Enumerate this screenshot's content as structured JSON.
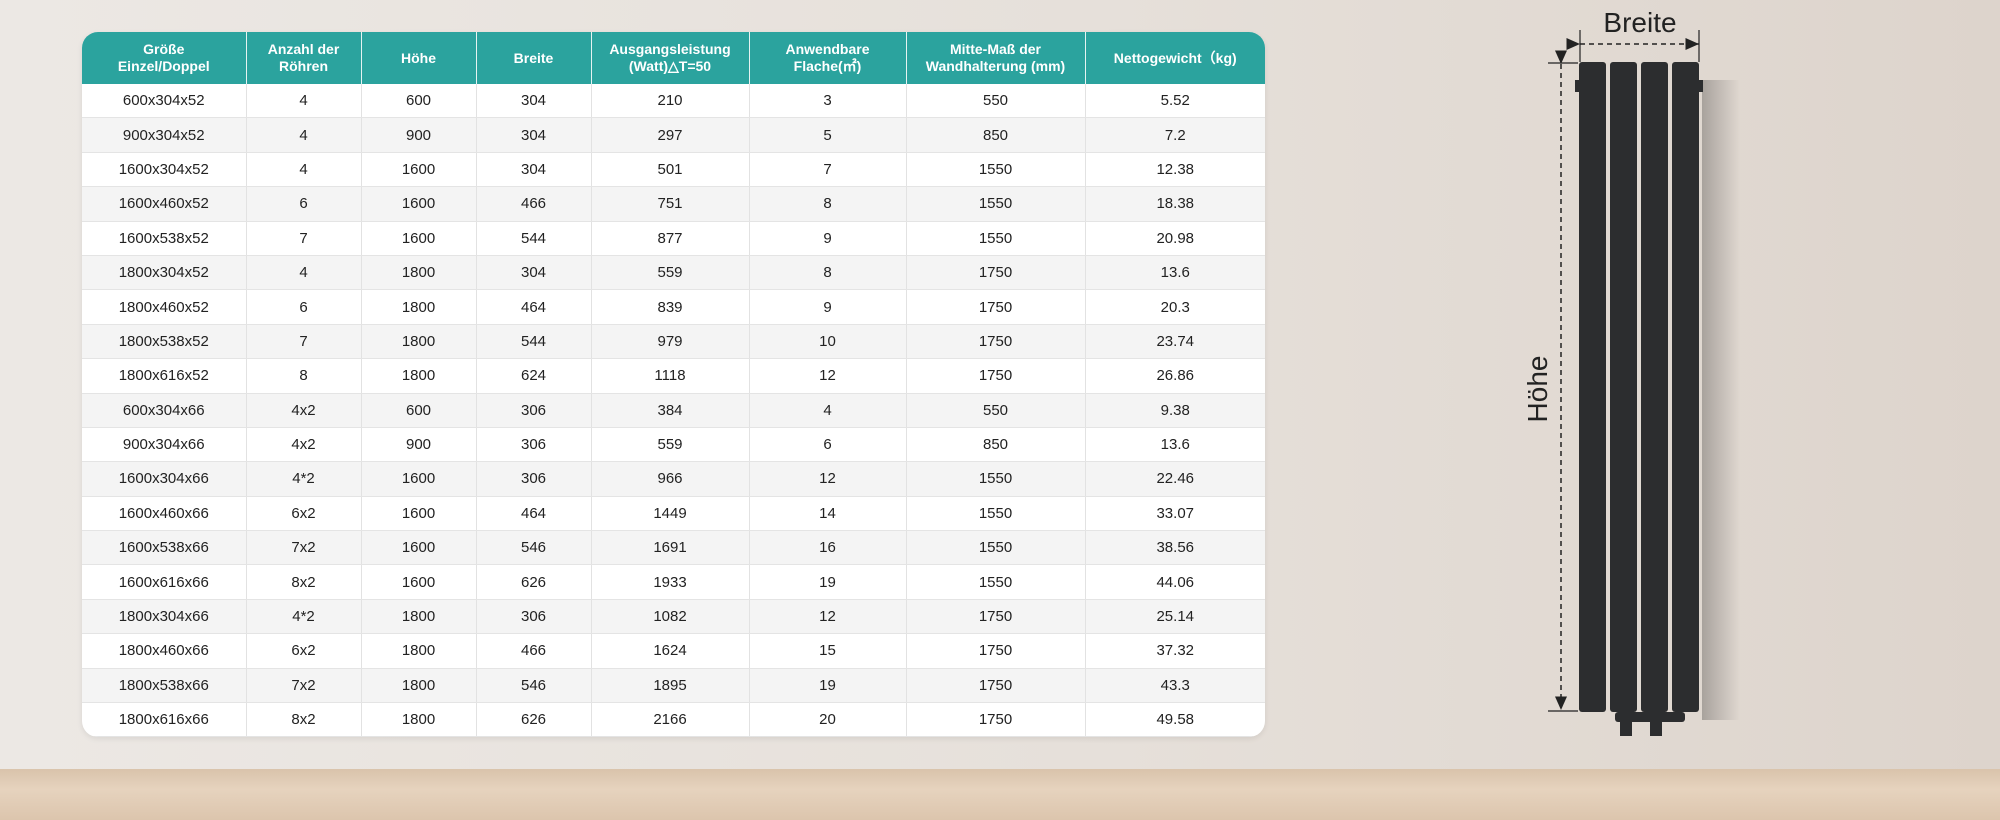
{
  "table": {
    "header": [
      "Größe\nEinzel/Doppel",
      "Anzahl der\nRöhren",
      "Höhe",
      "Breite",
      "Ausgangsleistung\n(Watt)△T=50",
      "Anwendbare\nFlache(㎡)",
      "Mitte-Maß der\nWandhalterung (mm)",
      "Nettogewicht（kg)"
    ],
    "rows": [
      [
        "600x304x52",
        "4",
        "600",
        "304",
        "210",
        "3",
        "550",
        "5.52"
      ],
      [
        "900x304x52",
        "4",
        "900",
        "304",
        "297",
        "5",
        "850",
        "7.2"
      ],
      [
        "1600x304x52",
        "4",
        "1600",
        "304",
        "501",
        "7",
        "1550",
        "12.38"
      ],
      [
        "1600x460x52",
        "6",
        "1600",
        "466",
        "751",
        "8",
        "1550",
        "18.38"
      ],
      [
        "1600x538x52",
        "7",
        "1600",
        "544",
        "877",
        "9",
        "1550",
        "20.98"
      ],
      [
        "1800x304x52",
        "4",
        "1800",
        "304",
        "559",
        "8",
        "1750",
        "13.6"
      ],
      [
        "1800x460x52",
        "6",
        "1800",
        "464",
        "839",
        "9",
        "1750",
        "20.3"
      ],
      [
        "1800x538x52",
        "7",
        "1800",
        "544",
        "979",
        "10",
        "1750",
        "23.74"
      ],
      [
        "1800x616x52",
        "8",
        "1800",
        "624",
        "1118",
        "12",
        "1750",
        "26.86"
      ],
      [
        "600x304x66",
        "4x2",
        "600",
        "306",
        "384",
        "4",
        "550",
        "9.38"
      ],
      [
        "900x304x66",
        "4x2",
        "900",
        "306",
        "559",
        "6",
        "850",
        "13.6"
      ],
      [
        "1600x304x66",
        "4*2",
        "1600",
        "306",
        "966",
        "12",
        "1550",
        "22.46"
      ],
      [
        "1600x460x66",
        "6x2",
        "1600",
        "464",
        "1449",
        "14",
        "1550",
        "33.07"
      ],
      [
        "1600x538x66",
        "7x2",
        "1600",
        "546",
        "1691",
        "16",
        "1550",
        "38.56"
      ],
      [
        "1600x616x66",
        "8x2",
        "1600",
        "626",
        "1933",
        "19",
        "1550",
        "44.06"
      ],
      [
        "1800x304x66",
        "4*2",
        "1800",
        "306",
        "1082",
        "12",
        "1750",
        "25.14"
      ],
      [
        "1800x460x66",
        "6x2",
        "1800",
        "466",
        "1624",
        "15",
        "1750",
        "37.32"
      ],
      [
        "1800x538x66",
        "7x2",
        "1800",
        "546",
        "1895",
        "19",
        "1750",
        "43.3"
      ],
      [
        "1800x616x66",
        "8x2",
        "1800",
        "626",
        "2166",
        "20",
        "1750",
        "49.58"
      ]
    ]
  },
  "diagram": {
    "width_label": "Breite",
    "height_label": "Höhe"
  }
}
